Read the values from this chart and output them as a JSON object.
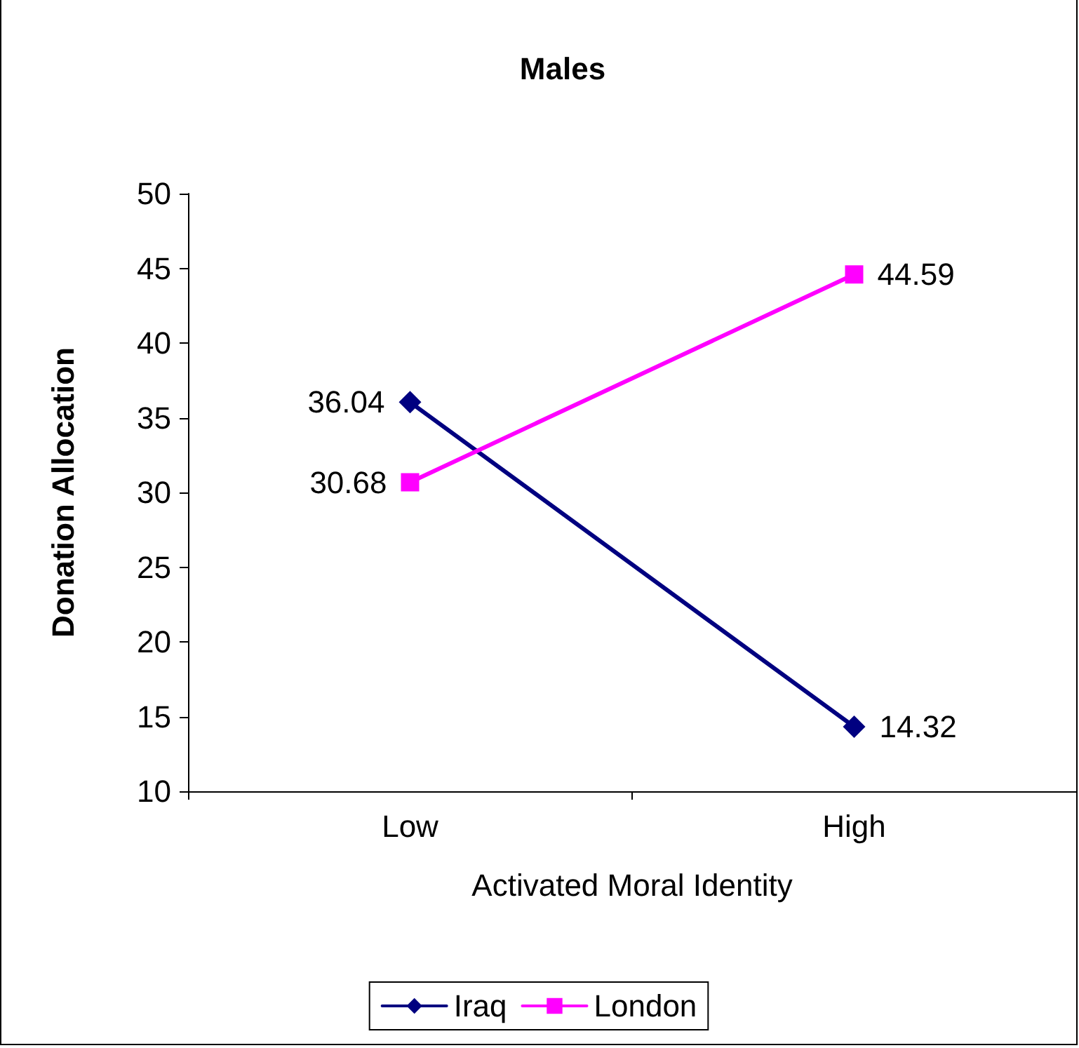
{
  "chart_data": {
    "type": "line",
    "title": "Males",
    "xlabel": "Activated Moral Identity",
    "ylabel": "Donation Allocation",
    "categories": [
      "Low",
      "High"
    ],
    "series": [
      {
        "name": "Iraq",
        "color": "#000080",
        "values": [
          36.04,
          14.32
        ],
        "marker": "diamond"
      },
      {
        "name": "London",
        "color": "#ff00ff",
        "values": [
          30.68,
          44.59
        ],
        "marker": "square"
      }
    ],
    "ylim": [
      10,
      50
    ],
    "yticks": [
      10,
      15,
      20,
      25,
      30,
      35,
      40,
      45,
      50
    ],
    "grid": false,
    "legend": "bottom",
    "data_labels": true,
    "line_style": "solid"
  }
}
